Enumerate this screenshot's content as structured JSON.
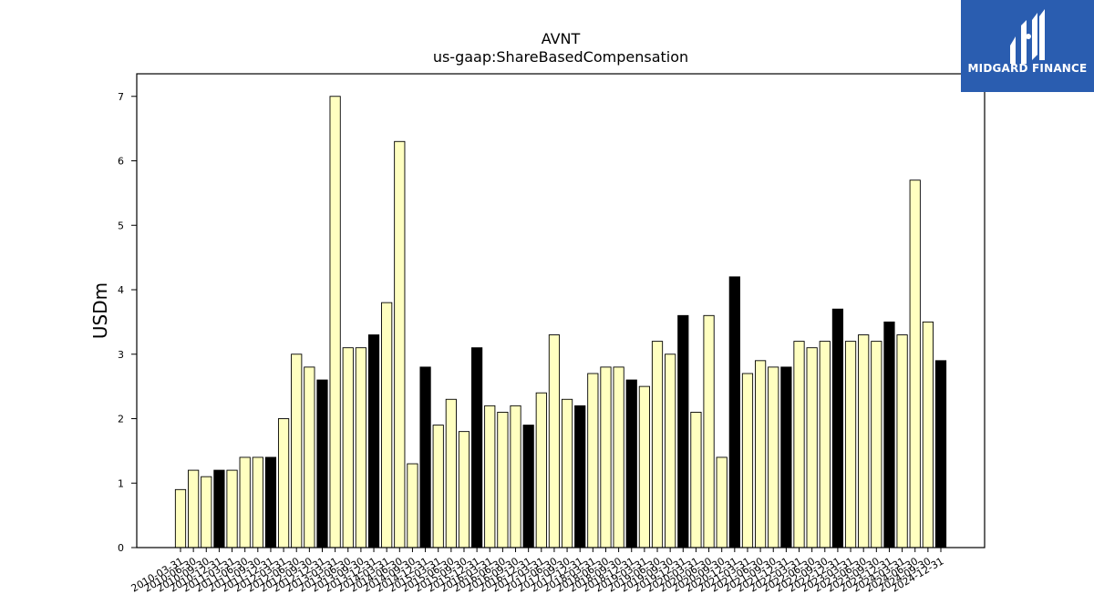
{
  "logo": {
    "text": "MIDGARD FINANCE",
    "background": "#2a5db0"
  },
  "chart_data": {
    "type": "bar",
    "title": "AVNT",
    "subtitle": "us-gaap:ShareBasedCompensation",
    "xlabel": "",
    "ylabel": "USDm",
    "ylim": [
      0,
      7.35
    ],
    "yticks": [
      0,
      1,
      2,
      3,
      4,
      5,
      6,
      7
    ],
    "grid": false,
    "colors": {
      "quarter": "#ffffc0",
      "annual": "#000000",
      "edge": "#000000"
    },
    "categories": [
      "2010-03-31",
      "2010-06-30",
      "2010-09-30",
      "2010-12-31",
      "2011-03-31",
      "2011-06-30",
      "2011-09-30",
      "2011-12-31",
      "2012-03-31",
      "2012-06-30",
      "2012-09-30",
      "2012-12-31",
      "2013-03-31",
      "2013-06-30",
      "2013-09-30",
      "2013-12-31",
      "2014-03-31",
      "2014-06-30",
      "2014-09-30",
      "2014-12-31",
      "2015-03-31",
      "2015-06-30",
      "2015-09-30",
      "2015-12-31",
      "2016-03-31",
      "2016-06-30",
      "2016-09-30",
      "2016-12-31",
      "2017-03-31",
      "2017-06-30",
      "2017-09-30",
      "2017-12-31",
      "2018-03-31",
      "2018-06-30",
      "2018-09-30",
      "2018-12-31",
      "2019-03-31",
      "2019-06-30",
      "2019-09-30",
      "2019-12-31",
      "2020-03-31",
      "2020-06-30",
      "2020-09-30",
      "2020-12-31",
      "2021-03-31",
      "2021-06-30",
      "2021-09-30",
      "2021-12-31",
      "2022-03-31",
      "2022-06-30",
      "2022-09-30",
      "2022-12-31",
      "2023-03-31",
      "2023-06-30",
      "2023-09-30",
      "2023-12-31",
      "2024-03-31",
      "2024-06-30",
      "2024-09-30",
      "2024-12-31"
    ],
    "values": [
      0.9,
      1.2,
      1.1,
      1.2,
      1.2,
      1.4,
      1.4,
      1.4,
      2.0,
      3.0,
      2.8,
      2.6,
      7.0,
      3.1,
      3.1,
      3.3,
      3.8,
      6.3,
      1.3,
      2.8,
      1.9,
      2.3,
      1.8,
      3.1,
      2.2,
      2.1,
      2.2,
      1.9,
      2.4,
      3.3,
      2.3,
      2.2,
      2.7,
      2.8,
      2.8,
      2.6,
      2.5,
      3.2,
      3.0,
      3.6,
      2.1,
      3.6,
      1.4,
      4.2,
      2.7,
      2.9,
      2.8,
      2.8,
      3.2,
      3.1,
      3.2,
      3.7,
      3.2,
      3.3,
      3.2,
      3.5,
      3.3,
      5.7,
      3.5,
      2.9
    ]
  }
}
